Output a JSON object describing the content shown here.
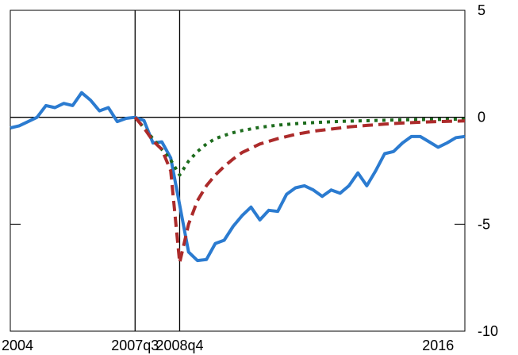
{
  "chart_data": {
    "type": "line",
    "title": "",
    "xlabel": "",
    "ylabel": "",
    "grid": false,
    "xlim": [
      2004.0,
      2016.75
    ],
    "ylim": [
      -10,
      5
    ],
    "x_tick_labels": [
      {
        "x": 2004.0,
        "label": "2004"
      },
      {
        "x": 2007.5,
        "label": "2007q3"
      },
      {
        "x": 2008.75,
        "label": "2008q4"
      },
      {
        "x": 2016.0,
        "label": "2016"
      }
    ],
    "y_ticks": [
      5,
      0,
      -5,
      -10
    ],
    "y_tick_labels": [
      "5",
      "0",
      "-5",
      "-10"
    ],
    "y_axis_side": "right",
    "reference_lines": {
      "vertical_x": [
        2007.5,
        2008.75
      ],
      "horizontal_y": [
        0
      ]
    },
    "colors": {
      "actual": "#2b7bd0",
      "scenario_a": "#ac2b2b",
      "scenario_b": "#1c6b1c",
      "axis": "#000000"
    },
    "series": [
      {
        "style": "solid",
        "color": "#2b7bd0",
        "x": [
          2004.0,
          2004.25,
          2004.5,
          2004.75,
          2005.0,
          2005.25,
          2005.5,
          2005.75,
          2006.0,
          2006.25,
          2006.5,
          2006.75,
          2007.0,
          2007.25,
          2007.5,
          2007.75,
          2008.0,
          2008.25,
          2008.5,
          2008.75,
          2009.0,
          2009.25,
          2009.5,
          2009.75,
          2010.0,
          2010.25,
          2010.5,
          2010.75,
          2011.0,
          2011.25,
          2011.5,
          2011.75,
          2012.0,
          2012.25,
          2012.5,
          2012.75,
          2013.0,
          2013.25,
          2013.5,
          2013.75,
          2014.0,
          2014.25,
          2014.5,
          2014.75,
          2015.0,
          2015.25,
          2015.5,
          2015.75,
          2016.0,
          2016.25,
          2016.5,
          2016.75
        ],
        "y": [
          -0.5,
          -0.4,
          -0.2,
          0.0,
          0.55,
          0.45,
          0.65,
          0.55,
          1.15,
          0.8,
          0.3,
          0.45,
          -0.2,
          -0.05,
          0.0,
          -0.15,
          -1.2,
          -1.15,
          -1.9,
          -4.1,
          -6.3,
          -6.7,
          -6.65,
          -5.9,
          -5.75,
          -5.1,
          -4.6,
          -4.2,
          -4.8,
          -4.35,
          -4.4,
          -3.6,
          -3.3,
          -3.2,
          -3.4,
          -3.7,
          -3.4,
          -3.55,
          -3.2,
          -2.6,
          -3.2,
          -2.5,
          -1.7,
          -1.6,
          -1.2,
          -0.9,
          -0.9,
          -1.15,
          -1.4,
          -1.2,
          -0.95,
          -0.9
        ]
      },
      {
        "style": "dashed",
        "color": "#ac2b2b",
        "x": [
          2007.5,
          2007.75,
          2008.0,
          2008.25,
          2008.5,
          2008.75,
          2009.0,
          2009.25,
          2009.5,
          2009.75,
          2010.0,
          2010.25,
          2010.5,
          2010.75,
          2011.0,
          2011.5,
          2012.0,
          2012.5,
          2013.0,
          2013.5,
          2014.0,
          2014.5,
          2015.0,
          2015.5,
          2016.0,
          2016.5,
          2016.75
        ],
        "y": [
          0.0,
          -0.5,
          -1.1,
          -1.5,
          -2.5,
          -6.8,
          -5.0,
          -3.9,
          -3.2,
          -2.7,
          -2.3,
          -1.95,
          -1.65,
          -1.45,
          -1.25,
          -1.0,
          -0.8,
          -0.65,
          -0.55,
          -0.45,
          -0.38,
          -0.32,
          -0.27,
          -0.23,
          -0.2,
          -0.18,
          -0.17
        ]
      },
      {
        "style": "dotted",
        "color": "#1c6b1c",
        "x": [
          2007.5,
          2007.75,
          2008.0,
          2008.25,
          2008.5,
          2008.75,
          2009.0,
          2009.25,
          2009.5,
          2009.75,
          2010.0,
          2010.25,
          2010.5,
          2011.0,
          2011.5,
          2012.0,
          2012.5,
          2013.0,
          2013.5,
          2014.0,
          2014.5,
          2015.0,
          2015.5,
          2016.0,
          2016.5,
          2016.75
        ],
        "y": [
          0.0,
          -0.5,
          -1.0,
          -1.5,
          -2.0,
          -2.7,
          -2.05,
          -1.6,
          -1.25,
          -1.0,
          -0.85,
          -0.72,
          -0.62,
          -0.47,
          -0.37,
          -0.3,
          -0.25,
          -0.21,
          -0.18,
          -0.16,
          -0.14,
          -0.12,
          -0.11,
          -0.1,
          -0.09,
          -0.09
        ]
      }
    ]
  }
}
